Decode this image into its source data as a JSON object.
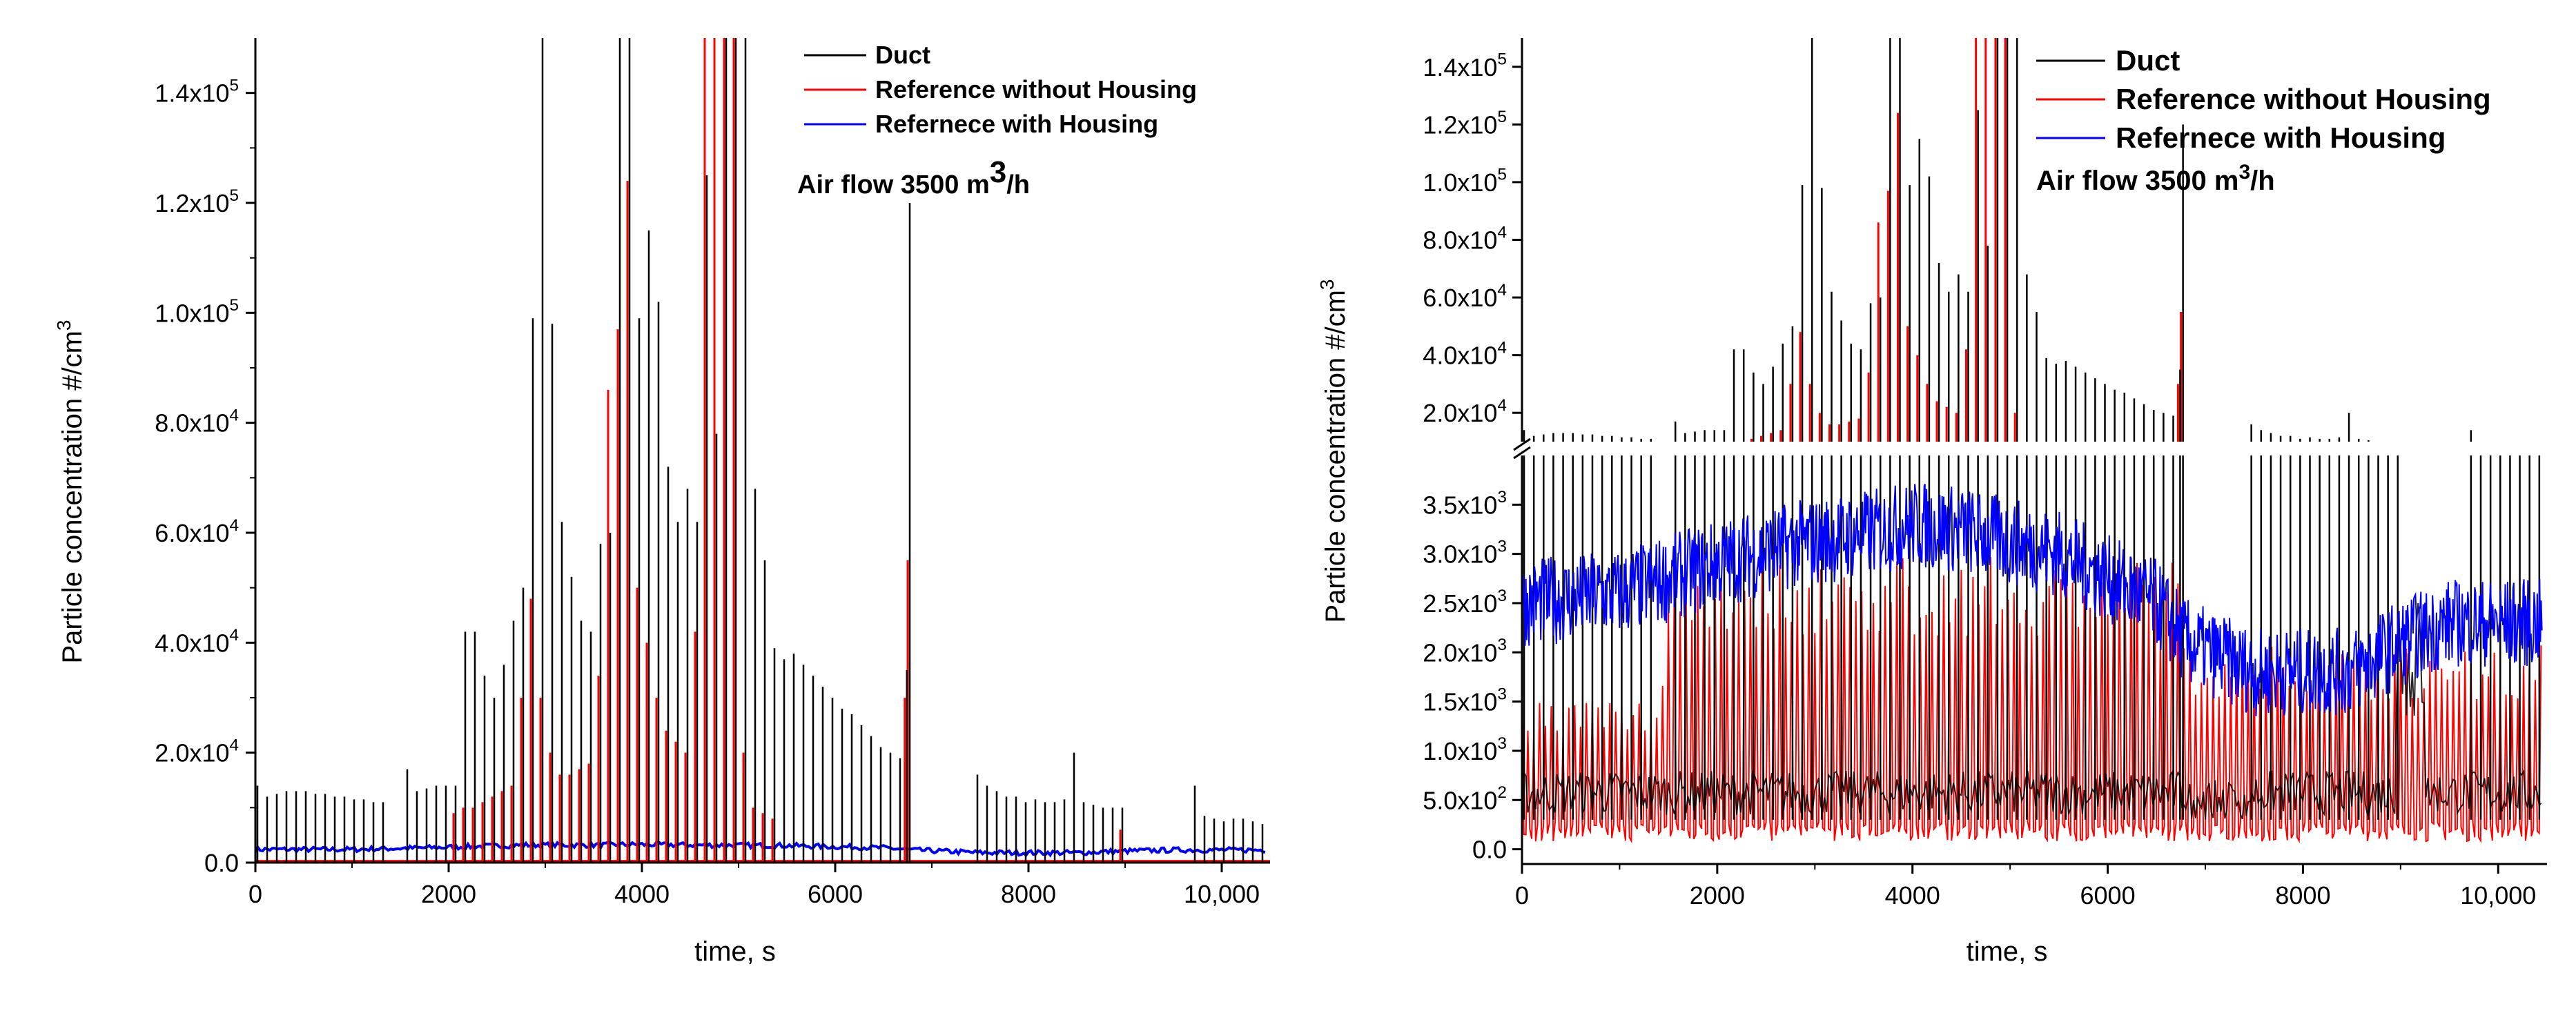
{
  "colors": {
    "duct": "#000000",
    "reference_without_housing": "#ff0000",
    "reference_with_housing": "#0000ff",
    "axis": "#000000"
  },
  "chart_data": [
    {
      "type": "line",
      "title": "",
      "xlabel": "time, s",
      "ylabel": "Particle concentration #/cm",
      "ylabel_sup": "3",
      "annotation": {
        "text": "Air flow 3500 m",
        "sup": "3",
        "suffix": "/h"
      },
      "legend_position": "top-right",
      "xlim": [
        0,
        10500
      ],
      "ylim": [
        0,
        150000
      ],
      "x_ticks": [
        0,
        2000,
        4000,
        6000,
        8000,
        10000
      ],
      "x_tick_labels": [
        "0",
        "2000",
        "4000",
        "6000",
        "8000",
        "10,000"
      ],
      "y_ticks": [
        0,
        20000,
        40000,
        60000,
        80000,
        100000,
        120000,
        140000
      ],
      "y_tick_labels": [
        {
          "m": "0.0",
          "e": ""
        },
        {
          "m": "2.0x10",
          "e": "4"
        },
        {
          "m": "4.0x10",
          "e": "4"
        },
        {
          "m": "6.0x10",
          "e": "4"
        },
        {
          "m": "8.0x10",
          "e": "4"
        },
        {
          "m": "1.0x10",
          "e": "5"
        },
        {
          "m": "1.2x10",
          "e": "5"
        },
        {
          "m": "1.4x10",
          "e": "5"
        }
      ],
      "series": [
        {
          "name": "Duct",
          "spike_times": [
            0,
            100,
            200,
            300,
            400,
            500,
            600,
            700,
            800,
            900,
            1000,
            1100,
            1200,
            1300,
            1550,
            1650,
            1750,
            1850,
            1950,
            2050,
            2150,
            2250,
            2350,
            2450,
            2550,
            2650,
            2750,
            2850,
            2950,
            3050,
            3150,
            3250,
            3350,
            3450,
            3550,
            3650,
            3750,
            3850,
            3950,
            4050,
            4150,
            4250,
            4350,
            4450,
            4550,
            4650,
            4750,
            4850,
            4950,
            5050,
            5150,
            5250,
            5350,
            5450,
            5550,
            5650,
            5750,
            5850,
            5950,
            6050,
            6150,
            6250,
            6350,
            6450,
            6550,
            6650,
            6720,
            6750,
            7450,
            7550,
            7650,
            7750,
            7850,
            7950,
            8050,
            8150,
            8250,
            8350,
            8450,
            8550,
            8650,
            8750,
            8850,
            8950,
            9700,
            9800,
            9900,
            10000,
            10100,
            10200,
            10300,
            10400
          ],
          "spike_peaks": [
            14000,
            12000,
            12500,
            13000,
            13000,
            13000,
            12500,
            12500,
            12000,
            12000,
            11500,
            11500,
            11000,
            11000,
            17000,
            13000,
            13500,
            14000,
            14000,
            14000,
            42000,
            42000,
            34000,
            30000,
            36000,
            44000,
            50000,
            99000,
            150000,
            98000,
            62000,
            52000,
            44000,
            42000,
            58000,
            60000,
            150000,
            150000,
            99000,
            115000,
            102000,
            72000,
            62000,
            68000,
            62000,
            125000,
            78000,
            150000,
            150000,
            150000,
            68000,
            55000,
            39000,
            37000,
            38000,
            36000,
            34000,
            32000,
            30000,
            28000,
            27000,
            25000,
            23000,
            21000,
            20000,
            19000,
            35000,
            120000,
            16000,
            14000,
            13000,
            12000,
            12000,
            11000,
            11500,
            11000,
            11000,
            11500,
            20000,
            11000,
            10500,
            10000,
            10000,
            10000,
            14000,
            8500,
            8000,
            7500,
            8000,
            8000,
            7500,
            7000
          ],
          "baseline": 500
        },
        {
          "name": "Reference without Housing",
          "spike_times": [
            2050,
            2150,
            2250,
            2350,
            2450,
            2550,
            2650,
            2750,
            2850,
            2950,
            3050,
            3150,
            3250,
            3350,
            3450,
            3550,
            3650,
            3750,
            3850,
            3950,
            4050,
            4150,
            4250,
            4350,
            4450,
            4550,
            4650,
            4750,
            4850,
            4950,
            5050,
            5150,
            5250,
            5350,
            6720,
            6750,
            8950
          ],
          "spike_peaks": [
            9000,
            10000,
            10000,
            11000,
            12000,
            13000,
            14000,
            30000,
            48000,
            30000,
            20000,
            16000,
            16000,
            17000,
            18000,
            34000,
            86000,
            97000,
            124000,
            50000,
            40000,
            30000,
            24000,
            22000,
            20000,
            42000,
            150000,
            150000,
            150000,
            150000,
            20000,
            10000,
            9000,
            8000,
            30000,
            55000,
            6000
          ],
          "baseline": 300
        },
        {
          "name": "Refernece with Housing",
          "x": [
            0,
            1000,
            2000,
            2800,
            3500,
            4000,
            4500,
            5500,
            6500,
            6800,
            7500,
            8500,
            9000,
            9500,
            10000,
            10400
          ],
          "y": [
            2400,
            2400,
            2800,
            3200,
            3200,
            3300,
            3200,
            3100,
            2700,
            2300,
            1800,
            1800,
            2100,
            2300,
            2300,
            2300
          ]
        }
      ]
    },
    {
      "type": "line",
      "title": "",
      "xlabel": "time, s",
      "ylabel": "Particle concentration #/cm",
      "ylabel_sup": "3",
      "annotation": {
        "text": "Air flow 3500 m",
        "sup": "3",
        "suffix": "/h"
      },
      "legend_position": "top-right",
      "broken_y_axis": true,
      "xlim": [
        0,
        10500
      ],
      "ylim_lower": [
        -150,
        4000
      ],
      "ylim_upper": [
        10000,
        150000
      ],
      "x_ticks": [
        0,
        2000,
        4000,
        6000,
        8000,
        10000
      ],
      "x_tick_labels": [
        "0",
        "2000",
        "4000",
        "6000",
        "8000",
        "10,000"
      ],
      "y_ticks_lower": [
        0,
        500,
        1000,
        1500,
        2000,
        2500,
        3000,
        3500
      ],
      "y_tick_labels_lower": [
        {
          "m": "0.0",
          "e": ""
        },
        {
          "m": "5.0x10",
          "e": "2"
        },
        {
          "m": "1.0x10",
          "e": "3"
        },
        {
          "m": "1.5x10",
          "e": "3"
        },
        {
          "m": "2.0x10",
          "e": "3"
        },
        {
          "m": "2.5x10",
          "e": "3"
        },
        {
          "m": "3.0x10",
          "e": "3"
        },
        {
          "m": "3.5x10",
          "e": "3"
        }
      ],
      "y_ticks_upper": [
        20000,
        40000,
        60000,
        80000,
        100000,
        120000,
        140000
      ],
      "y_tick_labels_upper": [
        {
          "m": "2.0x10",
          "e": "4"
        },
        {
          "m": "4.0x10",
          "e": "4"
        },
        {
          "m": "6.0x10",
          "e": "4"
        },
        {
          "m": "8.0x10",
          "e": "4"
        },
        {
          "m": "1.0x10",
          "e": "5"
        },
        {
          "m": "1.2x10",
          "e": "5"
        },
        {
          "m": "1.4x10",
          "e": "5"
        }
      ],
      "series": [
        {
          "name": "Duct"
        },
        {
          "name": "Reference without Housing"
        },
        {
          "name": "Refernece with Housing",
          "x": [
            0,
            1000,
            2000,
            2800,
            3500,
            4000,
            4500,
            5500,
            6500,
            6800,
            7500,
            8500,
            9000,
            9500,
            10000,
            10400
          ],
          "y": [
            2500,
            2600,
            2900,
            3100,
            3200,
            3300,
            3250,
            3000,
            2500,
            2100,
            1800,
            1800,
            2100,
            2300,
            2300,
            2300
          ]
        }
      ]
    }
  ]
}
